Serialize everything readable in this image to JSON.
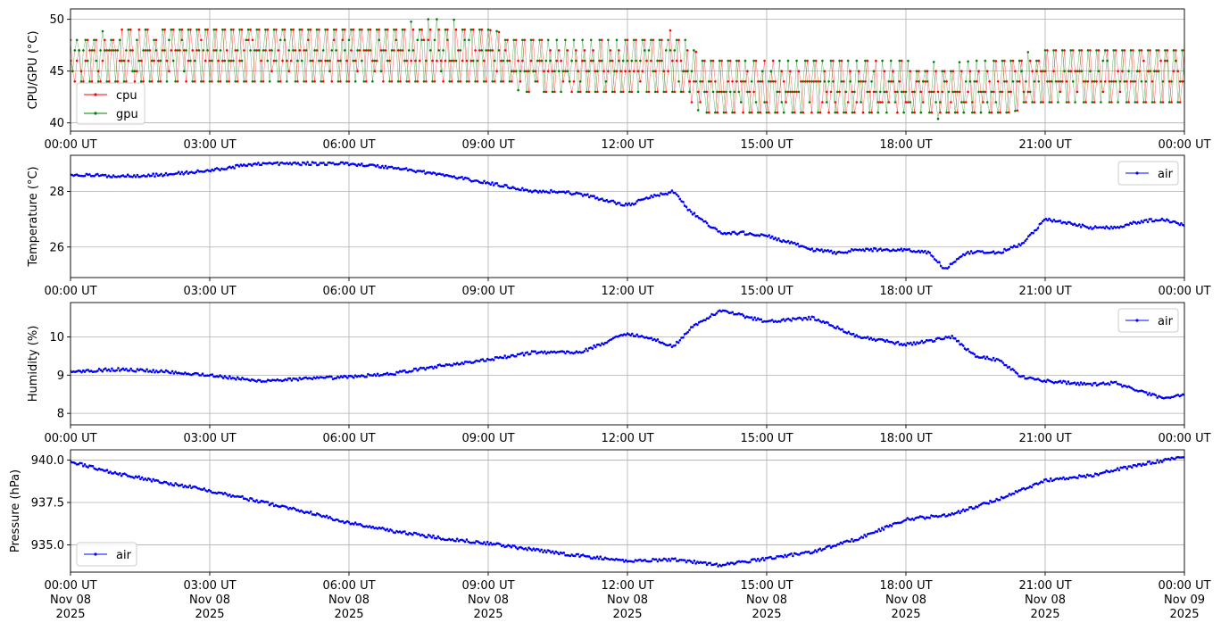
{
  "x_ticks": [
    {
      "label": "00:00 UT",
      "date": "Nov 08",
      "year": "2025"
    },
    {
      "label": "03:00 UT",
      "date": "Nov 08",
      "year": "2025"
    },
    {
      "label": "06:00 UT",
      "date": "Nov 08",
      "year": "2025"
    },
    {
      "label": "09:00 UT",
      "date": "Nov 08",
      "year": "2025"
    },
    {
      "label": "12:00 UT",
      "date": "Nov 08",
      "year": "2025"
    },
    {
      "label": "15:00 UT",
      "date": "Nov 08",
      "year": "2025"
    },
    {
      "label": "18:00 UT",
      "date": "Nov 08",
      "year": "2025"
    },
    {
      "label": "21:00 UT",
      "date": "Nov 08",
      "year": "2025"
    },
    {
      "label": "00:00 UT",
      "date": "Nov 09",
      "year": "2025"
    }
  ],
  "chart_data": [
    {
      "type": "line",
      "ylabel": "CPU/GPU (°C)",
      "ylim": [
        39.2,
        51.0
      ],
      "yticks": [
        40,
        45,
        50
      ],
      "ytick_labels": [
        "40",
        "45",
        "50"
      ],
      "xlim": [
        "2025-11-08 00:00",
        "2025-11-09 00:00"
      ],
      "grid": true,
      "legend": "lower-left",
      "series": [
        {
          "name": "cpu",
          "color": "#ff0000",
          "x": [
            "00:00",
            "01:00",
            "02:00",
            "03:00",
            "04:00",
            "05:00",
            "06:00",
            "07:00",
            "08:00",
            "09:00",
            "10:00",
            "11:00",
            "12:00",
            "13:00",
            "13:40",
            "14:00",
            "15:00",
            "16:00",
            "17:00",
            "18:00",
            "19:00",
            "20:00",
            "21:00",
            "22:00",
            "23:00",
            "24:00"
          ],
          "range_low": [
            43.8,
            43.8,
            43.8,
            43.8,
            43.8,
            43.8,
            43.8,
            43.8,
            43.8,
            43.8,
            42.8,
            42.8,
            42.8,
            42.8,
            40.8,
            40.8,
            40.8,
            40.8,
            40.8,
            40.8,
            40.8,
            40.8,
            41.8,
            41.8,
            41.8,
            41.8
          ],
          "range_high": [
            48.0,
            49.0,
            49.0,
            49.5,
            49.5,
            49.5,
            49.5,
            49.5,
            49.5,
            49.0,
            48.0,
            48.0,
            48.0,
            49.0,
            46.0,
            46.5,
            46.0,
            46.0,
            46.0,
            46.0,
            45.5,
            46.0,
            47.0,
            47.5,
            47.5,
            47.5
          ]
        },
        {
          "name": "gpu",
          "color": "#008000",
          "x": [
            "00:00",
            "01:00",
            "02:00",
            "03:00",
            "04:00",
            "05:00",
            "06:00",
            "07:00",
            "08:00",
            "09:00",
            "10:00",
            "11:00",
            "12:00",
            "13:00",
            "13:40",
            "14:00",
            "15:00",
            "16:00",
            "17:00",
            "18:00",
            "19:00",
            "20:00",
            "21:00",
            "22:00",
            "23:00",
            "24:00"
          ],
          "range_low": [
            43.8,
            43.8,
            43.8,
            43.8,
            43.8,
            43.8,
            43.8,
            43.8,
            43.8,
            43.8,
            42.8,
            42.8,
            42.8,
            42.8,
            40.8,
            40.8,
            40.8,
            40.8,
            40.8,
            40.8,
            40.2,
            40.8,
            41.8,
            41.8,
            41.8,
            41.8
          ],
          "range_high": [
            48.5,
            49.0,
            49.2,
            49.5,
            49.5,
            49.5,
            49.5,
            49.5,
            50.3,
            49.0,
            48.2,
            48.0,
            48.2,
            49.2,
            46.2,
            46.5,
            46.2,
            46.0,
            46.2,
            46.0,
            45.8,
            46.2,
            47.2,
            47.5,
            47.5,
            47.5
          ]
        }
      ]
    },
    {
      "type": "line",
      "ylabel": "Temperature (°C)",
      "ylim": [
        24.9,
        29.3
      ],
      "yticks": [
        26,
        28
      ],
      "ytick_labels": [
        "26",
        "28"
      ],
      "xlim": [
        "2025-11-08 00:00",
        "2025-11-09 00:00"
      ],
      "grid": true,
      "legend": "upper-right",
      "series": [
        {
          "name": "air",
          "color": "#0000ff",
          "x": [
            "00:00",
            "01:00",
            "02:00",
            "03:00",
            "04:00",
            "05:00",
            "06:00",
            "07:00",
            "08:00",
            "09:00",
            "10:00",
            "10:30",
            "11:00",
            "12:00",
            "12:30",
            "13:00",
            "13:20",
            "13:40",
            "14:00",
            "14:30",
            "15:00",
            "16:00",
            "16:30",
            "17:00",
            "18:00",
            "18:30",
            "18:50",
            "19:20",
            "20:00",
            "20:30",
            "21:00",
            "22:00",
            "22:30",
            "23:00",
            "23:30",
            "24:00"
          ],
          "y": [
            28.6,
            28.55,
            28.6,
            28.75,
            29.0,
            29.0,
            29.0,
            28.85,
            28.6,
            28.3,
            28.0,
            28.0,
            27.9,
            27.5,
            27.8,
            28.0,
            27.3,
            26.9,
            26.5,
            26.5,
            26.4,
            25.9,
            25.8,
            25.9,
            25.9,
            25.8,
            25.2,
            25.8,
            25.8,
            26.1,
            27.0,
            26.7,
            26.7,
            26.9,
            27.0,
            26.8
          ]
        }
      ]
    },
    {
      "type": "line",
      "ylabel": "Humidity (%)",
      "ylim": [
        7.7,
        10.9
      ],
      "yticks": [
        8,
        9,
        10
      ],
      "ytick_labels": [
        "8",
        "9",
        "10"
      ],
      "xlim": [
        "2025-11-08 00:00",
        "2025-11-09 00:00"
      ],
      "grid": true,
      "legend": "upper-right",
      "series": [
        {
          "name": "air",
          "color": "#0000ff",
          "x": [
            "00:00",
            "01:00",
            "02:00",
            "03:00",
            "04:00",
            "05:00",
            "06:00",
            "07:00",
            "08:00",
            "09:00",
            "10:00",
            "11:00",
            "12:00",
            "12:40",
            "13:00",
            "13:20",
            "14:00",
            "15:00",
            "16:00",
            "17:00",
            "18:00",
            "19:00",
            "19:30",
            "20:00",
            "20:30",
            "21:00",
            "22:00",
            "22:30",
            "23:00",
            "23:30",
            "24:00"
          ],
          "y": [
            9.1,
            9.15,
            9.1,
            9.0,
            8.85,
            8.9,
            8.95,
            9.05,
            9.25,
            9.4,
            9.6,
            9.6,
            10.1,
            9.9,
            9.75,
            10.2,
            10.7,
            10.4,
            10.5,
            10.0,
            9.8,
            10.0,
            9.5,
            9.4,
            8.95,
            8.85,
            8.75,
            8.8,
            8.6,
            8.4,
            8.5
          ]
        }
      ]
    },
    {
      "type": "line",
      "ylabel": "Pressure (hPa)",
      "ylim": [
        933.4,
        940.6
      ],
      "yticks": [
        935.0,
        937.5,
        940.0
      ],
      "ytick_labels": [
        "935.0",
        "937.5",
        "940.0"
      ],
      "xlim": [
        "2025-11-08 00:00",
        "2025-11-09 00:00"
      ],
      "grid": true,
      "legend": "lower-left",
      "series": [
        {
          "name": "air",
          "color": "#0000ff",
          "x": [
            "00:00",
            "01:00",
            "02:00",
            "03:00",
            "04:00",
            "05:00",
            "06:00",
            "07:00",
            "08:00",
            "09:00",
            "10:00",
            "11:00",
            "12:00",
            "13:00",
            "14:00",
            "15:00",
            "16:00",
            "17:00",
            "18:00",
            "19:00",
            "20:00",
            "21:00",
            "22:00",
            "23:00",
            "24:00"
          ],
          "y": [
            939.9,
            939.2,
            938.7,
            938.2,
            937.6,
            937.0,
            936.3,
            935.8,
            935.4,
            935.1,
            934.7,
            934.35,
            934.05,
            934.15,
            933.8,
            934.2,
            934.6,
            935.4,
            936.5,
            936.8,
            937.7,
            938.8,
            939.1,
            939.7,
            940.2
          ]
        }
      ]
    }
  ]
}
